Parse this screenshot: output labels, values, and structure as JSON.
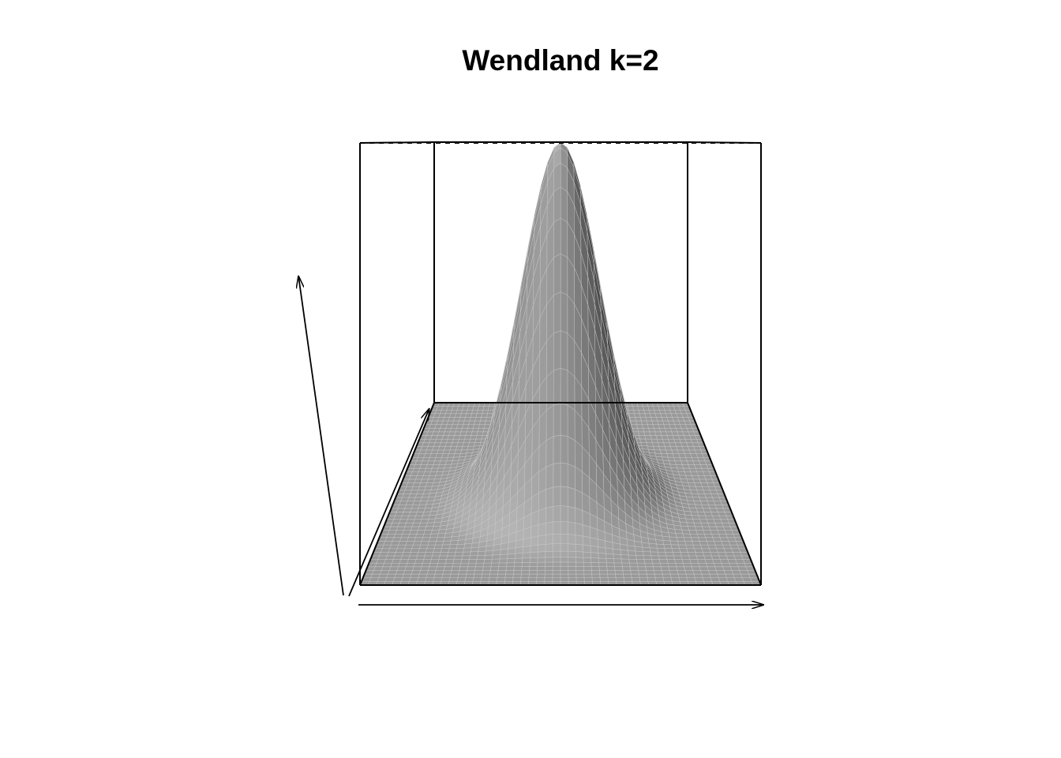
{
  "chart_data": {
    "type": "surface",
    "title": "Wendland k=2",
    "xlabel": "",
    "ylabel": "",
    "zlabel": "",
    "x": [
      -1,
      1
    ],
    "y": [
      -1,
      1
    ],
    "zlim": [
      0,
      1
    ],
    "surface_function": "wendland_k2",
    "support_radius": 1,
    "peak_value": 1,
    "peak_at": [
      0,
      0
    ],
    "grid_lines": 50,
    "shade": "grey",
    "box": true,
    "axis_arrows": true
  }
}
